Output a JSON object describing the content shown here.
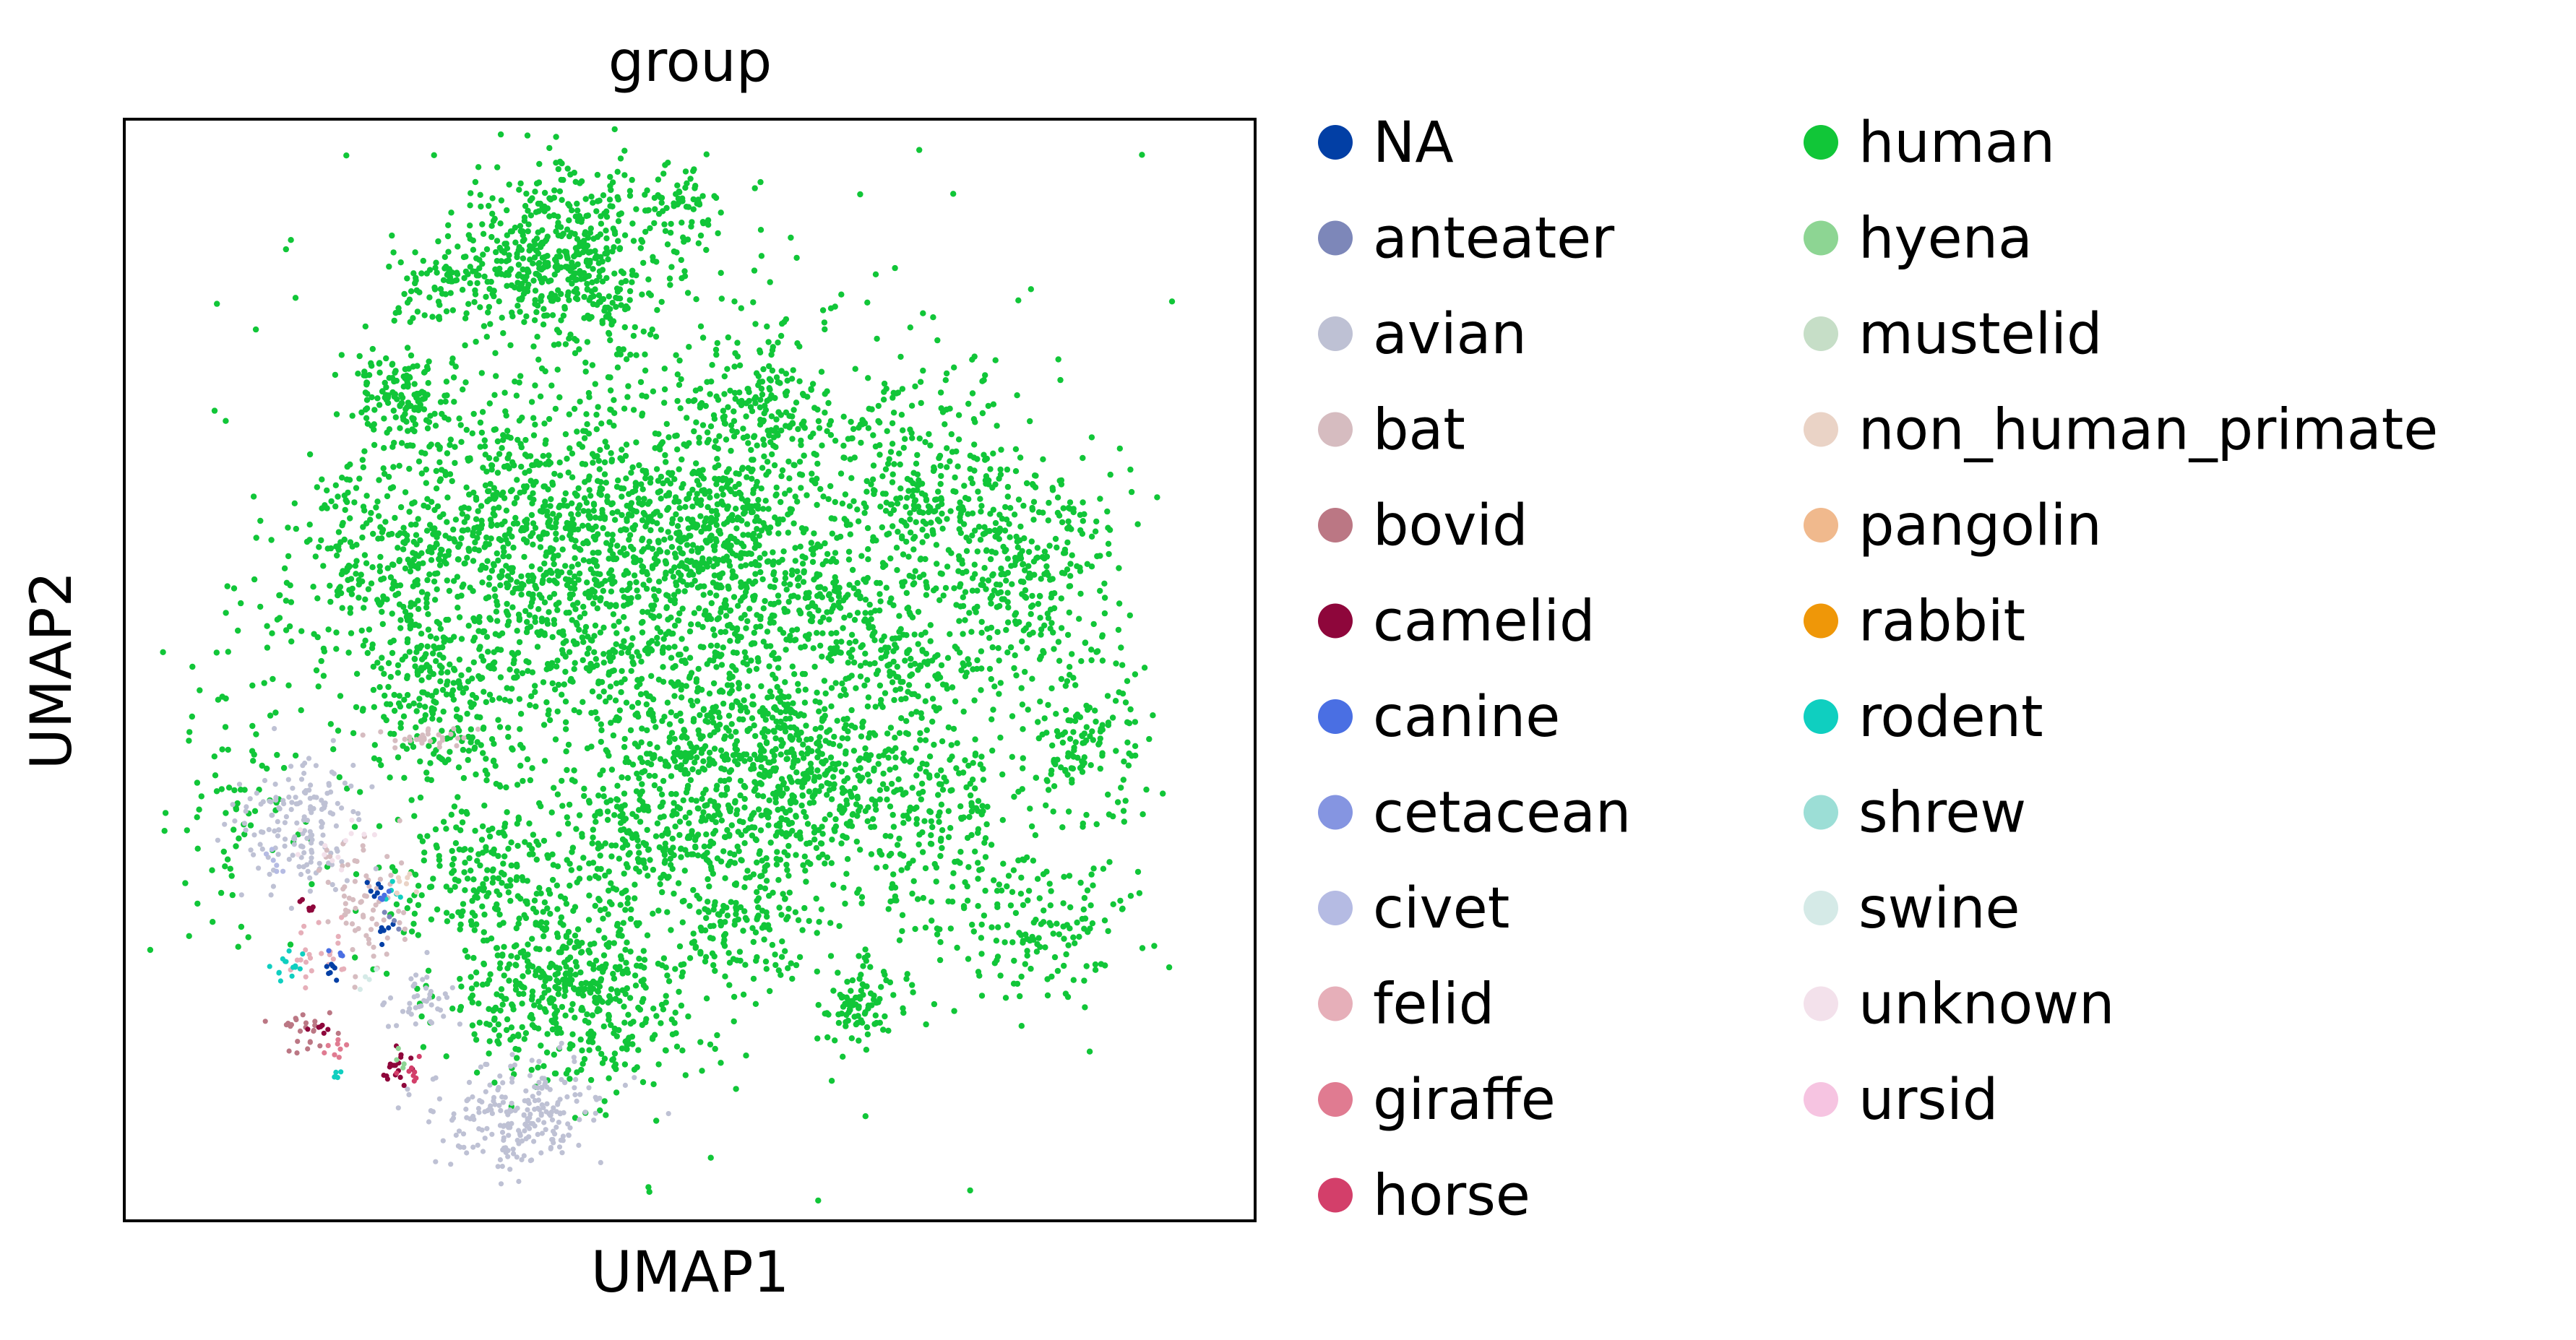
{
  "chart_data": {
    "type": "scatter",
    "title": "group",
    "xlabel": "UMAP1",
    "ylabel": "UMAP2",
    "xlim": [
      0,
      10
    ],
    "ylim": [
      0,
      10
    ],
    "grid": false,
    "legend_position": "right, two columns",
    "legend": [
      {
        "label": "NA",
        "color": "#023fa5"
      },
      {
        "label": "anteater",
        "color": "#7d87b9"
      },
      {
        "label": "avian",
        "color": "#bec1d4"
      },
      {
        "label": "bat",
        "color": "#d6bcc0"
      },
      {
        "label": "bovid",
        "color": "#bb7784"
      },
      {
        "label": "camelid",
        "color": "#8e063b"
      },
      {
        "label": "canine",
        "color": "#4a6fe3"
      },
      {
        "label": "cetacean",
        "color": "#8595e1"
      },
      {
        "label": "civet",
        "color": "#b5bbe3"
      },
      {
        "label": "felid",
        "color": "#e6afb9"
      },
      {
        "label": "giraffe",
        "color": "#e07b91"
      },
      {
        "label": "horse",
        "color": "#d33f6a"
      },
      {
        "label": "human",
        "color": "#11c638"
      },
      {
        "label": "hyena",
        "color": "#8dd593"
      },
      {
        "label": "mustelid",
        "color": "#c6dec7"
      },
      {
        "label": "non_human_primate",
        "color": "#ead3c6"
      },
      {
        "label": "pangolin",
        "color": "#f0b98d"
      },
      {
        "label": "rabbit",
        "color": "#ef9708"
      },
      {
        "label": "rodent",
        "color": "#0fcfc0"
      },
      {
        "label": "shrew",
        "color": "#9cded6"
      },
      {
        "label": "swine",
        "color": "#d5eae7"
      },
      {
        "label": "unknown",
        "color": "#f3e1eb"
      },
      {
        "label": "ursid",
        "color": "#f6c4e1"
      }
    ],
    "clusters": [
      {
        "group": "human",
        "x": 3.9,
        "y": 8.7,
        "sx": 0.45,
        "sy": 0.42,
        "n": 520
      },
      {
        "group": "human",
        "x": 3.9,
        "y": 6.1,
        "sx": 0.9,
        "sy": 0.75,
        "n": 1100
      },
      {
        "group": "human",
        "x": 5.3,
        "y": 6.3,
        "sx": 0.5,
        "sy": 0.5,
        "n": 420
      },
      {
        "group": "human",
        "x": 5.9,
        "y": 4.0,
        "sx": 0.6,
        "sy": 0.55,
        "n": 620
      },
      {
        "group": "human",
        "x": 4.0,
        "y": 2.1,
        "sx": 0.55,
        "sy": 0.42,
        "n": 500
      },
      {
        "group": "human",
        "x": 7.8,
        "y": 6.0,
        "sx": 0.5,
        "sy": 0.55,
        "n": 420
      },
      {
        "group": "human",
        "x": 2.4,
        "y": 7.5,
        "sx": 0.25,
        "sy": 0.22,
        "n": 140
      },
      {
        "group": "human",
        "x": 6.2,
        "y": 5.6,
        "sx": 0.28,
        "sy": 0.25,
        "n": 130
      },
      {
        "group": "human",
        "x": 2.7,
        "y": 4.8,
        "sx": 0.38,
        "sy": 0.45,
        "n": 220
      },
      {
        "group": "human",
        "x": 6.5,
        "y": 2.0,
        "sx": 0.18,
        "sy": 0.2,
        "n": 90
      },
      {
        "group": "human",
        "x": 5.7,
        "y": 7.4,
        "sx": 0.3,
        "sy": 0.3,
        "n": 130
      },
      {
        "group": "human",
        "x": 2.8,
        "y": 8.5,
        "sx": 0.22,
        "sy": 0.2,
        "n": 80
      },
      {
        "group": "human",
        "x": 4.9,
        "y": 9.2,
        "sx": 0.22,
        "sy": 0.18,
        "n": 70
      },
      {
        "group": "human",
        "x": 6.9,
        "y": 5.0,
        "sx": 0.2,
        "sy": 0.2,
        "n": 70
      },
      {
        "group": "human",
        "x": 7.0,
        "y": 6.5,
        "sx": 0.2,
        "sy": 0.2,
        "n": 60
      },
      {
        "group": "human",
        "x": 8.5,
        "y": 4.4,
        "sx": 0.3,
        "sy": 0.5,
        "n": 150
      },
      {
        "group": "human",
        "x": 7.2,
        "y": 3.6,
        "sx": 0.45,
        "sy": 0.55,
        "n": 200
      },
      {
        "group": "human",
        "x": 5.1,
        "y": 4.6,
        "sx": 0.55,
        "sy": 0.5,
        "n": 260
      },
      {
        "group": "human",
        "x": 4.6,
        "y": 3.5,
        "sx": 0.5,
        "sy": 0.35,
        "n": 200
      },
      {
        "group": "human",
        "x": 3.2,
        "y": 3.2,
        "sx": 0.45,
        "sy": 0.4,
        "n": 200
      },
      {
        "group": "human",
        "x": 2.2,
        "y": 6.0,
        "sx": 0.45,
        "sy": 0.45,
        "n": 200
      },
      {
        "group": "human",
        "x": 8.2,
        "y": 2.6,
        "sx": 0.35,
        "sy": 0.35,
        "n": 130
      },
      {
        "group": "human",
        "x": 5.5,
        "y": 2.6,
        "sx": 0.3,
        "sy": 0.25,
        "n": 110
      },
      {
        "group": "human",
        "x": 6.7,
        "y": 7.0,
        "sx": 0.5,
        "sy": 0.5,
        "n": 150
      },
      {
        "group": "human",
        "x": 5.0,
        "y": 5.5,
        "sx": 1.8,
        "sy": 2.0,
        "n": 650
      },
      {
        "group": "human",
        "x": 1.0,
        "y": 4.0,
        "sx": 0.35,
        "sy": 0.7,
        "n": 90
      },
      {
        "group": "avian",
        "x": 3.5,
        "y": 0.95,
        "sx": 0.35,
        "sy": 0.25,
        "n": 230
      },
      {
        "group": "avian",
        "x": 1.6,
        "y": 3.6,
        "sx": 0.28,
        "sy": 0.32,
        "n": 160
      },
      {
        "group": "avian",
        "x": 2.6,
        "y": 2.0,
        "sx": 0.2,
        "sy": 0.15,
        "n": 40
      },
      {
        "group": "bat",
        "x": 2.1,
        "y": 2.9,
        "sx": 0.2,
        "sy": 0.3,
        "n": 70
      },
      {
        "group": "bat",
        "x": 2.7,
        "y": 4.4,
        "sx": 0.2,
        "sy": 0.05,
        "n": 30
      },
      {
        "group": "bovid",
        "x": 1.6,
        "y": 1.7,
        "sx": 0.1,
        "sy": 0.12,
        "n": 25
      },
      {
        "group": "felid",
        "x": 1.7,
        "y": 2.4,
        "sx": 0.12,
        "sy": 0.15,
        "n": 25
      },
      {
        "group": "giraffe",
        "x": 1.9,
        "y": 1.55,
        "sx": 0.05,
        "sy": 0.06,
        "n": 8
      },
      {
        "group": "camelid",
        "x": 2.4,
        "y": 1.4,
        "sx": 0.06,
        "sy": 0.1,
        "n": 18
      },
      {
        "group": "camelid",
        "x": 1.65,
        "y": 2.85,
        "sx": 0.04,
        "sy": 0.05,
        "n": 6
      },
      {
        "group": "camelid",
        "x": 1.75,
        "y": 1.75,
        "sx": 0.05,
        "sy": 0.05,
        "n": 6
      },
      {
        "group": "horse",
        "x": 2.5,
        "y": 1.35,
        "sx": 0.06,
        "sy": 0.05,
        "n": 8
      },
      {
        "group": "rodent",
        "x": 1.45,
        "y": 2.3,
        "sx": 0.07,
        "sy": 0.08,
        "n": 14
      },
      {
        "group": "rodent",
        "x": 1.9,
        "y": 1.3,
        "sx": 0.03,
        "sy": 0.04,
        "n": 5
      },
      {
        "group": "rodent",
        "x": 2.35,
        "y": 3.0,
        "sx": 0.05,
        "sy": 0.05,
        "n": 6
      },
      {
        "group": "NA",
        "x": 1.85,
        "y": 2.3,
        "sx": 0.04,
        "sy": 0.06,
        "n": 7
      },
      {
        "group": "NA",
        "x": 2.3,
        "y": 2.6,
        "sx": 0.04,
        "sy": 0.05,
        "n": 6
      },
      {
        "group": "NA",
        "x": 2.25,
        "y": 3.0,
        "sx": 0.05,
        "sy": 0.05,
        "n": 6
      },
      {
        "group": "canine",
        "x": 2.3,
        "y": 2.95,
        "sx": 0.05,
        "sy": 0.05,
        "n": 5
      },
      {
        "group": "canine",
        "x": 1.9,
        "y": 2.4,
        "sx": 0.04,
        "sy": 0.04,
        "n": 4
      },
      {
        "group": "anteater",
        "x": 2.4,
        "y": 2.7,
        "sx": 0.05,
        "sy": 0.05,
        "n": 4
      },
      {
        "group": "unknown",
        "x": 1.9,
        "y": 3.3,
        "sx": 0.15,
        "sy": 0.15,
        "n": 12
      },
      {
        "group": "non_human_primate",
        "x": 2.5,
        "y": 3.1,
        "sx": 0.1,
        "sy": 0.1,
        "n": 8
      },
      {
        "group": "hyena",
        "x": 2.45,
        "y": 1.5,
        "sx": 0.05,
        "sy": 0.05,
        "n": 4
      },
      {
        "group": "swine",
        "x": 2.15,
        "y": 2.2,
        "sx": 0.05,
        "sy": 0.05,
        "n": 4
      },
      {
        "group": "civet",
        "x": 1.4,
        "y": 3.2,
        "sx": 0.1,
        "sy": 0.1,
        "n": 6
      }
    ]
  }
}
